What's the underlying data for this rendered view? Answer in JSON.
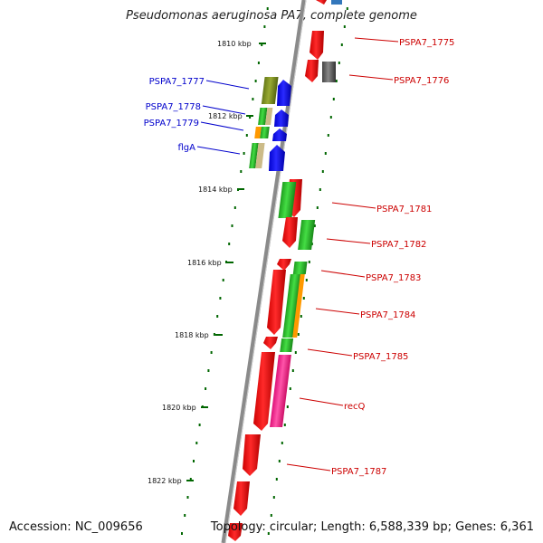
{
  "header": {
    "title": "Pseudomonas aeruginosa PA7, complete genome"
  },
  "footer": {
    "accession": "Accession: NC_009656",
    "summary": "Topology: circular; Length: 6,588,339 bp; Genes: 6,361"
  },
  "ruler": {
    "ticks": [
      "1810 kbp",
      "1812 kbp",
      "1814 kbp",
      "1816 kbp",
      "1818 kbp",
      "1820 kbp",
      "1822 kbp"
    ]
  },
  "genes_left": [
    {
      "label": "PSPA7_1777"
    },
    {
      "label": "PSPA7_1778"
    },
    {
      "label": "PSPA7_1779"
    },
    {
      "label": "flgA"
    }
  ],
  "genes_right": [
    {
      "label": "PSPA7_1775"
    },
    {
      "label": "PSPA7_1776"
    },
    {
      "label": "PSPA7_1781"
    },
    {
      "label": "PSPA7_1782"
    },
    {
      "label": "PSPA7_1783"
    },
    {
      "label": "PSPA7_1784"
    },
    {
      "label": "PSPA7_1785"
    },
    {
      "label": "recQ"
    },
    {
      "label": "PSPA7_1787"
    }
  ],
  "colors": {
    "forward_strand": "#0000ff",
    "reverse_strand": "#ff0000",
    "backbone": "#888888",
    "tick": "#006600",
    "cog_green": "#33cc33",
    "cog_olive": "#889922",
    "cog_pink": "#ff3399",
    "cog_orange": "#ff9900",
    "cog_gray": "#666666",
    "cog_tan": "#ccbb88"
  }
}
